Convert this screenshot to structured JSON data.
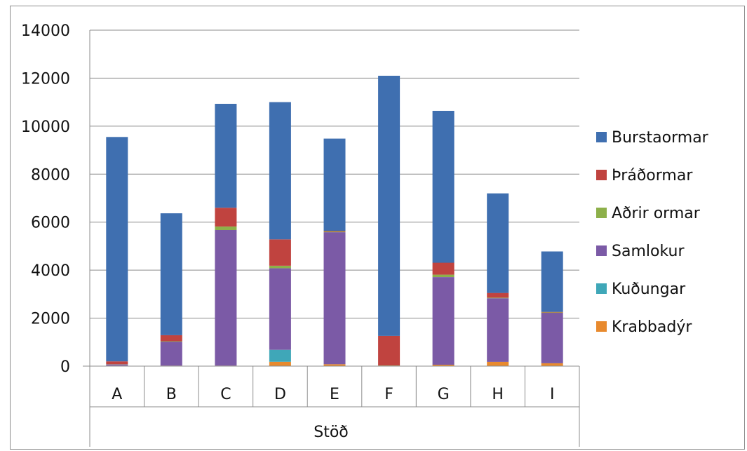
{
  "chart_data": {
    "type": "bar",
    "stacked": true,
    "categories": [
      "A",
      "B",
      "C",
      "D",
      "E",
      "F",
      "G",
      "H",
      "I"
    ],
    "xlabel": "Stöð",
    "ylim": [
      0,
      14000
    ],
    "yticks": [
      "0",
      "2000",
      "4000",
      "6000",
      "8000",
      "10000",
      "12000",
      "14000"
    ],
    "grid": true,
    "legend_position": "right",
    "series": [
      {
        "name": "Krabbadýr",
        "color": "#e88a2e",
        "values": [
          20,
          20,
          20,
          180,
          80,
          20,
          60,
          180,
          120
        ]
      },
      {
        "name": "Kuðungar",
        "color": "#3fa7b8",
        "values": [
          0,
          0,
          0,
          500,
          0,
          0,
          0,
          0,
          0
        ]
      },
      {
        "name": "Samlokur",
        "color": "#7b5aa6",
        "values": [
          50,
          1000,
          5650,
          3400,
          5500,
          0,
          3650,
          2650,
          2100
        ]
      },
      {
        "name": "Aðrir ormar",
        "color": "#8db04a",
        "values": [
          10,
          20,
          150,
          100,
          30,
          10,
          100,
          20,
          20
        ]
      },
      {
        "name": "Þráðormar",
        "color": "#c0433f",
        "values": [
          120,
          250,
          780,
          1100,
          30,
          1230,
          500,
          200,
          20
        ]
      },
      {
        "name": "Burstaormar",
        "color": "#3f6fb0",
        "values": [
          9350,
          5080,
          4330,
          5720,
          3840,
          10840,
          6330,
          4150,
          2520
        ]
      }
    ]
  }
}
